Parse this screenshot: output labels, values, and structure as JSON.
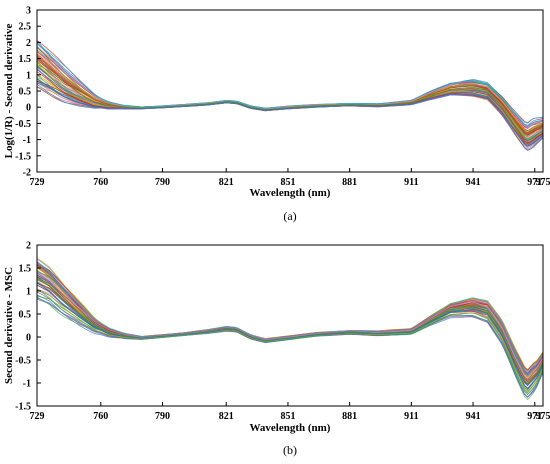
{
  "chart_data": [
    {
      "type": "line",
      "caption": "(a)",
      "ylabel": "Log(1/R) - Second derivative",
      "xlabel": "Wavelength (nm)",
      "xlim": [
        729,
        975
      ],
      "ylim": [
        -2,
        3
      ],
      "xticks": [
        729,
        760,
        790,
        821,
        851,
        881,
        911,
        941,
        971,
        975
      ],
      "yticks": [
        3,
        2.5,
        2,
        1.5,
        1,
        0.5,
        0,
        -0.5,
        -1,
        -1.5,
        -2
      ],
      "ytick_labels": [
        "3",
        "2.5",
        "2",
        "1.5",
        "1",
        "0.5",
        "0",
        "-0.5",
        "-1",
        "-1.5",
        "-2"
      ],
      "grid": false,
      "legend": "none",
      "series_count": 60,
      "mean": {
        "x": [
          729,
          735,
          742,
          750,
          757,
          764,
          772,
          780,
          790,
          800,
          812,
          821,
          826,
          833,
          840,
          851,
          865,
          881,
          895,
          911,
          920,
          930,
          941,
          948,
          955,
          962,
          967,
          972,
          975
        ],
        "y": [
          1.35,
          1.05,
          0.7,
          0.4,
          0.17,
          0.05,
          0.0,
          -0.02,
          0.01,
          0.05,
          0.1,
          0.17,
          0.15,
          0.0,
          -0.07,
          -0.01,
          0.04,
          0.08,
          0.06,
          0.14,
          0.35,
          0.55,
          0.6,
          0.5,
          0.05,
          -0.55,
          -0.95,
          -0.75,
          -0.65
        ]
      },
      "spread": {
        "x": [
          729,
          740,
          750,
          760,
          770,
          780,
          800,
          821,
          840,
          881,
          911,
          925,
          941,
          950,
          958,
          965,
          970,
          975
        ],
        "y": [
          0.7,
          0.55,
          0.35,
          0.15,
          0.06,
          0.03,
          0.03,
          0.04,
          0.04,
          0.04,
          0.06,
          0.15,
          0.25,
          0.25,
          0.3,
          0.35,
          0.4,
          0.28
        ]
      },
      "colors": [
        "#e41a1c",
        "#377eb8",
        "#4daf4a",
        "#984ea3",
        "#ff7f00",
        "#a6a400",
        "#a65628",
        "#f781bf",
        "#17becf",
        "#2ca02c",
        "#9467bd",
        "#1f77b4",
        "#d62728",
        "#8c564b",
        "#7f7f7f",
        "#bcbd22"
      ]
    },
    {
      "type": "line",
      "caption": "(b)",
      "ylabel": "Second derivative - MSC",
      "xlabel": "Wavelength (nm)",
      "xlim": [
        729,
        975
      ],
      "ylim": [
        -1.5,
        2
      ],
      "xticks": [
        729,
        760,
        790,
        821,
        851,
        881,
        911,
        941,
        971,
        975
      ],
      "yticks": [
        2,
        1.5,
        1,
        0.5,
        0,
        -0.5,
        -1,
        -1.5
      ],
      "ytick_labels": [
        "2",
        "1.5",
        "1",
        "0.5",
        "0",
        "-0.5",
        "-1",
        "-1.5"
      ],
      "grid": false,
      "legend": "none",
      "series_count": 60,
      "mean": {
        "x": [
          729,
          735,
          742,
          750,
          757,
          764,
          772,
          780,
          790,
          800,
          812,
          821,
          826,
          833,
          840,
          851,
          865,
          881,
          895,
          911,
          920,
          930,
          941,
          948,
          955,
          962,
          967,
          972,
          975
        ],
        "y": [
          1.25,
          1.1,
          0.8,
          0.5,
          0.25,
          0.1,
          0.02,
          -0.02,
          0.02,
          0.06,
          0.12,
          0.18,
          0.16,
          0.0,
          -0.08,
          -0.02,
          0.06,
          0.1,
          0.08,
          0.12,
          0.35,
          0.58,
          0.65,
          0.55,
          0.1,
          -0.6,
          -1.05,
          -0.8,
          -0.55
        ]
      },
      "spread": {
        "x": [
          729,
          740,
          750,
          760,
          770,
          780,
          800,
          821,
          840,
          881,
          911,
          925,
          941,
          950,
          958,
          965,
          970,
          975
        ],
        "y": [
          0.4,
          0.35,
          0.25,
          0.12,
          0.06,
          0.03,
          0.03,
          0.05,
          0.04,
          0.04,
          0.06,
          0.12,
          0.2,
          0.22,
          0.25,
          0.3,
          0.32,
          0.22
        ]
      },
      "colors": [
        "#e41a1c",
        "#377eb8",
        "#4daf4a",
        "#984ea3",
        "#ff7f00",
        "#a6a400",
        "#a65628",
        "#f781bf",
        "#17becf",
        "#2ca02c",
        "#9467bd",
        "#1f77b4",
        "#d62728",
        "#8c564b",
        "#7f7f7f",
        "#bcbd22"
      ]
    }
  ]
}
